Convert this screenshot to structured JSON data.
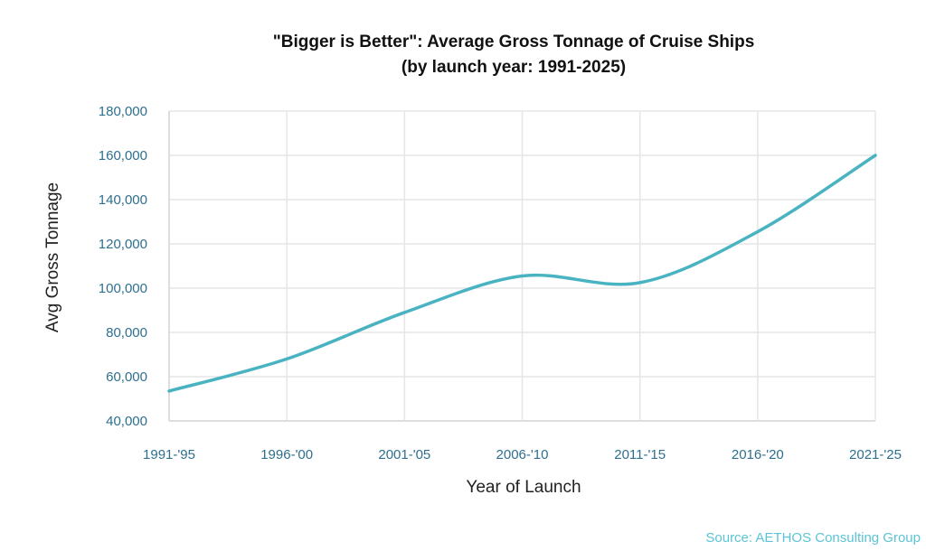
{
  "chart_data": {
    "type": "line",
    "title": "\"Bigger is Better\": Average Gross Tonnage of Cruise Ships",
    "subtitle": "(by launch year: 1991-2025)",
    "xlabel": "Year of Launch",
    "ylabel": "Avg Gross Tonnage",
    "categories": [
      "1991-'95",
      "1996-'00",
      "2001-'05",
      "2006-'10",
      "2011-'15",
      "2016-'20",
      "2021-'25"
    ],
    "series": [
      {
        "name": "Avg Gross Tonnage",
        "values": [
          53500,
          68000,
          89000,
          105500,
          102500,
          125500,
          160000
        ],
        "color": "#4ab3c2"
      }
    ],
    "ylim": [
      40000,
      180000
    ],
    "yticks": [
      40000,
      60000,
      80000,
      100000,
      120000,
      140000,
      160000,
      180000
    ],
    "ytick_labels": [
      "40,000",
      "60,000",
      "80,000",
      "100,000",
      "120,000",
      "140,000",
      "160,000",
      "180,000"
    ],
    "grid": true,
    "legend": "none",
    "source": "Source: AETHOS Consulting Group"
  }
}
